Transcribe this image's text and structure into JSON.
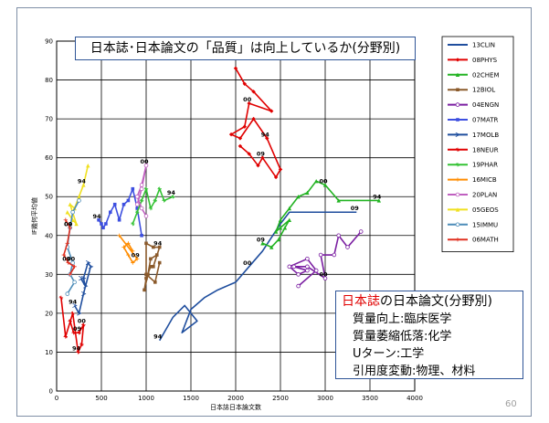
{
  "slide": {
    "title": "日本誌･日本論文の「品質」は向上しているか(分野別)",
    "page_number": "60",
    "note": {
      "heading_red": "日本誌",
      "heading_rest": "の日本論文(分野別)",
      "lines": [
        "質量向上:臨床医学",
        "質量萎縮低落:化学",
        "Uターン:工学",
        "引用度変動:物理、材料"
      ]
    }
  },
  "chart_data": {
    "type": "line",
    "title": "日本誌･日本論文の「品質」は向上しているか(分野別)",
    "xlabel": "日本誌日本論文数",
    "ylabel": "IF幾何平均値",
    "xlim": [
      0,
      4000
    ],
    "ylim": [
      0,
      90
    ],
    "xticks": [
      "0",
      "500",
      "1000",
      "1500",
      "2000",
      "2500",
      "3000",
      "3500",
      "4000"
    ],
    "yticks": [
      "0",
      "10",
      "20",
      "30",
      "40",
      "50",
      "60",
      "70",
      "80",
      "90"
    ],
    "grid": true,
    "legend_position": "right",
    "series": [
      {
        "name": "13CLIN",
        "color": "#1f4e9e",
        "marker": "none",
        "points": [
          [
            1150,
            13
          ],
          [
            1250,
            17
          ],
          [
            1300,
            19
          ],
          [
            1430,
            22
          ],
          [
            1570,
            18
          ],
          [
            1400,
            15
          ],
          [
            1500,
            21
          ],
          [
            1650,
            24
          ],
          [
            1800,
            26
          ],
          [
            2000,
            28
          ],
          [
            2150,
            32
          ],
          [
            2300,
            36
          ],
          [
            2500,
            43
          ],
          [
            2600,
            46
          ],
          [
            3350,
            46
          ]
        ],
        "labels": [
          {
            "text": "94",
            "index": 0
          },
          {
            "text": "00",
            "index": 10
          },
          {
            "text": "09",
            "index": 14
          }
        ]
      },
      {
        "name": "08PHYS",
        "color": "#e00000",
        "marker": "diamond",
        "points": [
          [
            2000,
            83
          ],
          [
            2100,
            79
          ],
          [
            2200,
            77
          ],
          [
            2400,
            72
          ],
          [
            2150,
            74
          ],
          [
            2100,
            68
          ],
          [
            1950,
            66
          ],
          [
            2050,
            65
          ],
          [
            2200,
            70
          ],
          [
            2350,
            65
          ],
          [
            2500,
            57
          ],
          [
            2450,
            55
          ],
          [
            2300,
            60
          ],
          [
            2250,
            58
          ],
          [
            2150,
            61
          ],
          [
            2050,
            63
          ]
        ],
        "labels": [
          {
            "text": "00",
            "index": 4
          },
          {
            "text": "94",
            "index": 9
          },
          {
            "text": "09",
            "index": 12
          }
        ]
      },
      {
        "name": "02CHEM",
        "color": "#22b322",
        "marker": "triangle",
        "points": [
          [
            3600,
            49
          ],
          [
            3150,
            49
          ],
          [
            3000,
            53
          ],
          [
            2900,
            54
          ],
          [
            2800,
            51
          ],
          [
            2700,
            50
          ],
          [
            2600,
            47
          ],
          [
            2500,
            44
          ],
          [
            2450,
            41
          ],
          [
            2500,
            42
          ],
          [
            2600,
            44
          ],
          [
            2550,
            42
          ],
          [
            2480,
            39
          ],
          [
            2400,
            37
          ],
          [
            2300,
            38
          ]
        ],
        "labels": [
          {
            "text": "94",
            "index": 0
          },
          {
            "text": "00",
            "index": 2
          },
          {
            "text": "09",
            "index": 14
          }
        ]
      },
      {
        "name": "12BIOL",
        "color": "#8b5a2b",
        "marker": "square",
        "points": [
          [
            1050,
            32
          ],
          [
            1000,
            29
          ],
          [
            980,
            26
          ],
          [
            1020,
            30
          ],
          [
            1050,
            34
          ],
          [
            1120,
            35
          ],
          [
            1080,
            32
          ],
          [
            1150,
            37
          ],
          [
            1080,
            37
          ],
          [
            1000,
            38
          ],
          [
            1000,
            30
          ],
          [
            1100,
            28
          ],
          [
            1150,
            33
          ]
        ],
        "labels": [
          {
            "text": "94",
            "index": 7
          }
        ]
      },
      {
        "name": "04ENGN",
        "color": "#7b1fa2",
        "marker": "circle",
        "points": [
          [
            3400,
            41
          ],
          [
            3250,
            37
          ],
          [
            3150,
            40
          ],
          [
            3100,
            35
          ],
          [
            2950,
            35
          ],
          [
            3000,
            29
          ],
          [
            2800,
            32
          ],
          [
            2650,
            32
          ],
          [
            2800,
            31
          ],
          [
            2700,
            30
          ],
          [
            2600,
            32
          ],
          [
            2800,
            34
          ],
          [
            2900,
            31
          ],
          [
            2700,
            27
          ]
        ],
        "labels": [
          {
            "text": "00",
            "index": 5
          }
        ]
      },
      {
        "name": "07MATR",
        "color": "#3d4fe0",
        "marker": "square",
        "points": [
          [
            950,
            40
          ],
          [
            900,
            47
          ],
          [
            850,
            52
          ],
          [
            800,
            49
          ],
          [
            750,
            48
          ],
          [
            700,
            44
          ],
          [
            650,
            48
          ],
          [
            600,
            46
          ],
          [
            550,
            43
          ],
          [
            520,
            42
          ],
          [
            500,
            43
          ],
          [
            470,
            44
          ]
        ],
        "labels": [
          {
            "text": "94",
            "index": 11
          }
        ]
      },
      {
        "name": "17MOLB",
        "color": "#1f4e9e",
        "marker": "arrow",
        "points": [
          [
            200,
            22
          ],
          [
            250,
            20
          ],
          [
            300,
            25
          ],
          [
            380,
            32
          ],
          [
            350,
            33
          ],
          [
            300,
            29
          ],
          [
            320,
            27
          ],
          [
            270,
            29
          ]
        ],
        "labels": [
          {
            "text": "94",
            "index": 0
          }
        ]
      },
      {
        "name": "18NEUR",
        "color": "#e00000",
        "marker": "star",
        "points": [
          [
            50,
            24
          ],
          [
            100,
            14
          ],
          [
            180,
            20
          ],
          [
            240,
            10
          ],
          [
            280,
            12
          ],
          [
            300,
            17
          ],
          [
            250,
            15
          ],
          [
            190,
            15
          ],
          [
            150,
            18
          ]
        ],
        "labels": [
          {
            "text": "09",
            "index": 6
          },
          {
            "text": "94",
            "index": 3
          },
          {
            "text": "00",
            "index": 5
          }
        ]
      },
      {
        "name": "19PHAR",
        "color": "#34c234",
        "marker": "star",
        "points": [
          [
            1300,
            50
          ],
          [
            1200,
            49
          ],
          [
            1150,
            52
          ],
          [
            1100,
            49
          ],
          [
            1050,
            47
          ],
          [
            1000,
            52
          ],
          [
            950,
            49
          ],
          [
            900,
            46
          ],
          [
            850,
            43
          ]
        ],
        "labels": [
          {
            "text": "94",
            "index": 0
          }
        ]
      },
      {
        "name": "16MICB",
        "color": "#ff8c00",
        "marker": "plus",
        "points": [
          [
            700,
            40
          ],
          [
            900,
            34
          ],
          [
            850,
            33
          ],
          [
            800,
            35
          ],
          [
            750,
            37
          ],
          [
            800,
            38
          ],
          [
            850,
            36
          ]
        ],
        "labels": [
          {
            "text": "09",
            "index": 1
          }
        ]
      },
      {
        "name": "20PLAN",
        "color": "#c060c0",
        "marker": "circle",
        "points": [
          [
            1000,
            45
          ],
          [
            950,
            47
          ],
          [
            900,
            50
          ],
          [
            950,
            53
          ],
          [
            1000,
            58
          ],
          [
            950,
            52
          ],
          [
            900,
            48
          ]
        ],
        "labels": [
          {
            "text": "00",
            "index": 4
          }
        ]
      },
      {
        "name": "05GEOS",
        "color": "#f0e020",
        "marker": "triangle",
        "points": [
          [
            350,
            58
          ],
          [
            300,
            53
          ],
          [
            250,
            50
          ],
          [
            200,
            47
          ],
          [
            150,
            48
          ],
          [
            220,
            43
          ],
          [
            180,
            44
          ],
          [
            120,
            46
          ]
        ],
        "labels": [
          {
            "text": "94",
            "index": 1
          }
        ]
      },
      {
        "name": "15IMMU",
        "color": "#4c8cb8",
        "marker": "circle",
        "points": [
          [
            250,
            49
          ],
          [
            180,
            46
          ],
          [
            150,
            42
          ],
          [
            120,
            37
          ],
          [
            180,
            33
          ],
          [
            150,
            30
          ],
          [
            200,
            28
          ],
          [
            120,
            25
          ]
        ],
        "labels": [
          {
            "text": "09",
            "index": 2
          },
          {
            "text": "00",
            "index": 4
          }
        ]
      },
      {
        "name": "06MATH",
        "color": "#e03020",
        "marker": "plus",
        "points": [
          [
            100,
            44
          ],
          [
            150,
            42
          ],
          [
            120,
            38
          ],
          [
            80,
            35
          ],
          [
            130,
            33
          ],
          [
            200,
            32
          ],
          [
            150,
            30
          ]
        ],
        "labels": [
          {
            "text": "00",
            "index": 1
          },
          {
            "text": "09",
            "index": 4
          }
        ]
      }
    ]
  }
}
